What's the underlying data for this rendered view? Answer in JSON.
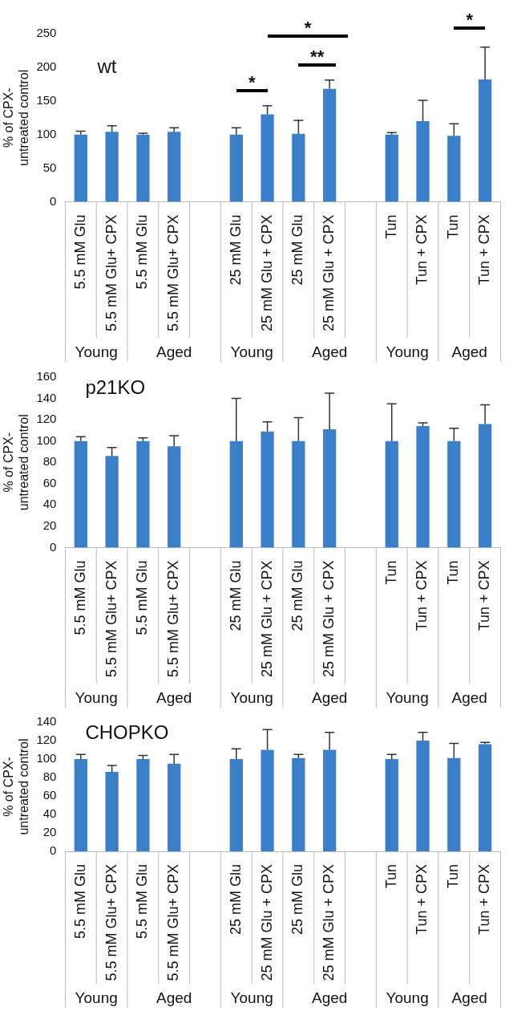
{
  "chart_data": [
    {
      "type": "bar",
      "title": "wt",
      "ylabel": "% of CPX-\nuntreated control",
      "categories": [
        "5.5 mM Glu",
        "5.5 mM Glu+ CPX",
        "5.5 mM Glu",
        "5.5 mM Glu+ CPX",
        null,
        "25 mM Glu",
        "25 mM Glu + CPX",
        "25 mM Glu",
        "25 mM Glu + CPX",
        null,
        "Tun",
        "Tun + CPX",
        "Tun",
        "Tun + CPX"
      ],
      "color": "#3a7fc8",
      "values": [
        100,
        104,
        100,
        104,
        null,
        100,
        130,
        101,
        168,
        null,
        100,
        120,
        98,
        182
      ],
      "errors": [
        [
          100,
          105
        ],
        [
          104,
          113
        ],
        [
          100,
          102
        ],
        [
          104,
          110
        ],
        null,
        [
          100,
          110
        ],
        [
          130,
          143
        ],
        [
          101,
          121
        ],
        [
          168,
          181
        ],
        null,
        [
          100,
          103
        ],
        [
          120,
          151
        ],
        [
          98,
          116
        ],
        [
          182,
          230
        ]
      ],
      "ylim": [
        0,
        250
      ],
      "yticks": [
        0,
        50,
        100,
        150,
        200,
        250
      ],
      "annotations": [
        "Young",
        "Aged",
        "Young",
        "Aged",
        "Young",
        "Aged",
        "*",
        "*",
        "**",
        "*"
      ]
    },
    {
      "type": "bar",
      "title": "p21KO",
      "ylabel": "% of CPX-\nuntreated control",
      "categories": [
        "5.5 mM Glu",
        "5.5 mM Glu+ CPX",
        "5.5 mM Glu",
        "5.5 mM Glu+ CPX",
        null,
        "25 mM Glu",
        "25 mM Glu + CPX",
        "25 mM Glu",
        "25 mM Glu + CPX",
        null,
        "Tun",
        "Tun + CPX",
        "Tun",
        "Tun + CPX"
      ],
      "color": "#3a7fc8",
      "values": [
        100,
        86,
        100,
        95,
        null,
        100,
        109,
        100,
        111,
        null,
        100,
        114,
        100,
        116
      ],
      "errors": [
        [
          100,
          104
        ],
        [
          86,
          94
        ],
        [
          100,
          103
        ],
        [
          95,
          105
        ],
        null,
        [
          100,
          140
        ],
        [
          109,
          118
        ],
        [
          100,
          122
        ],
        [
          111,
          145
        ],
        null,
        [
          100,
          135
        ],
        [
          114,
          117
        ],
        [
          100,
          112
        ],
        [
          116,
          134
        ]
      ],
      "ylim": [
        0,
        160
      ],
      "yticks": [
        0,
        20,
        40,
        60,
        80,
        100,
        120,
        140,
        160
      ],
      "annotations": [
        "Young",
        "Aged",
        "Young",
        "Aged",
        "Young",
        "Aged"
      ]
    },
    {
      "type": "bar",
      "title": "CHOPKO",
      "ylabel": "% of CPX-\nuntreated control",
      "categories": [
        "5.5 mM Glu",
        "5.5 mM Glu+ CPX",
        "5.5 mM Glu",
        "5.5 mM Glu+ CPX",
        null,
        "25 mM Glu",
        "25 mM Glu + CPX",
        "25 mM Glu",
        "25 mM Glu + CPX",
        null,
        "Tun",
        "Tun + CPX",
        "Tun",
        "Tun + CPX"
      ],
      "color": "#3a7fc8",
      "values": [
        100,
        86,
        100,
        95,
        null,
        100,
        110,
        101,
        110,
        null,
        100,
        120,
        101,
        116
      ],
      "errors": [
        [
          100,
          105
        ],
        [
          86,
          93
        ],
        [
          100,
          104
        ],
        [
          95,
          105
        ],
        null,
        [
          100,
          111
        ],
        [
          110,
          132
        ],
        [
          101,
          105
        ],
        [
          110,
          129
        ],
        null,
        [
          100,
          105
        ],
        [
          120,
          129
        ],
        [
          101,
          117
        ],
        [
          116,
          118
        ]
      ],
      "ylim": [
        0,
        140
      ],
      "yticks": [
        0,
        20,
        40,
        60,
        80,
        100,
        120,
        140
      ],
      "annotations": [
        "Young",
        "Aged",
        "Young",
        "Aged",
        "Young",
        "Aged"
      ]
    }
  ]
}
